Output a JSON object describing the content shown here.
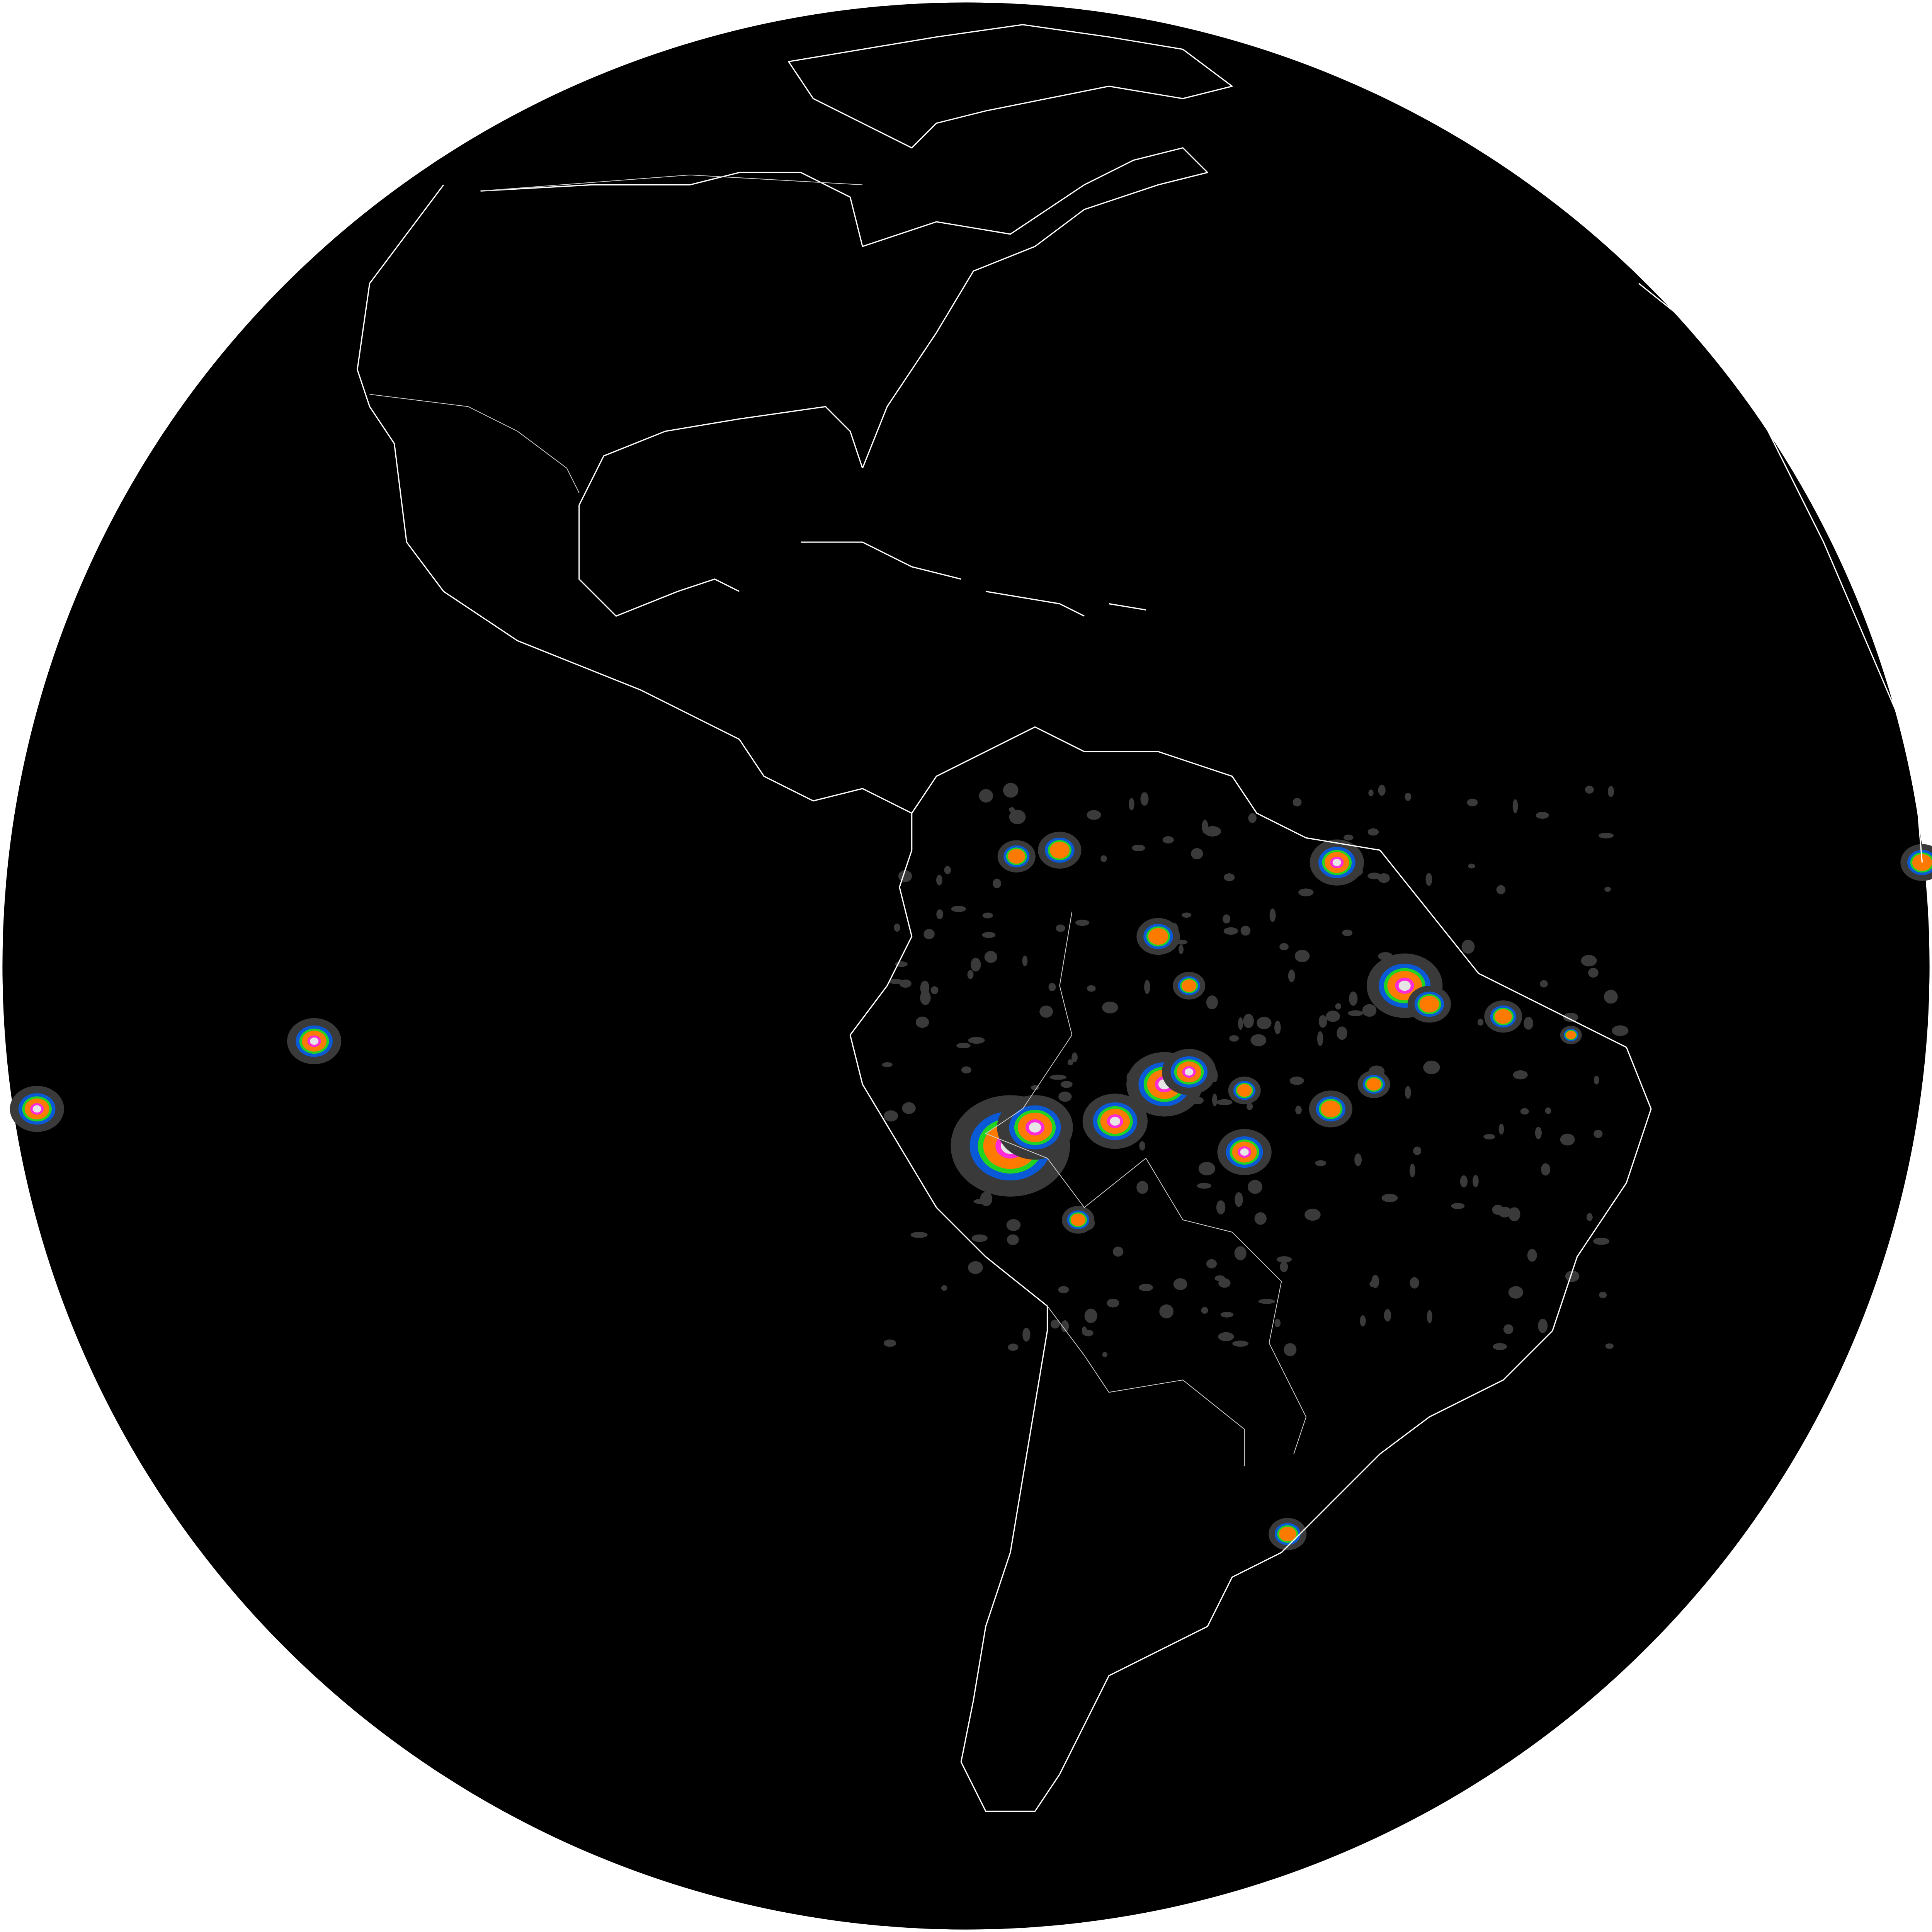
{
  "image": {
    "kind": "full-disk satellite imagery",
    "background_color": "#ffffff",
    "disk_color": "#000000",
    "coastline_color": "#ffffff",
    "border_color": "#cfcfcf"
  },
  "colors": {
    "cloud_gray": "#3a3a3a",
    "blue": "#0a5ad8",
    "green": "#22d422",
    "orange": "#ff7a00",
    "magenta": "#ff2ad8",
    "white_core": "#e6e6e6"
  },
  "features": [
    "north-america",
    "central-america",
    "caribbean",
    "south-america",
    "greenland",
    "africa-west-limb"
  ]
}
